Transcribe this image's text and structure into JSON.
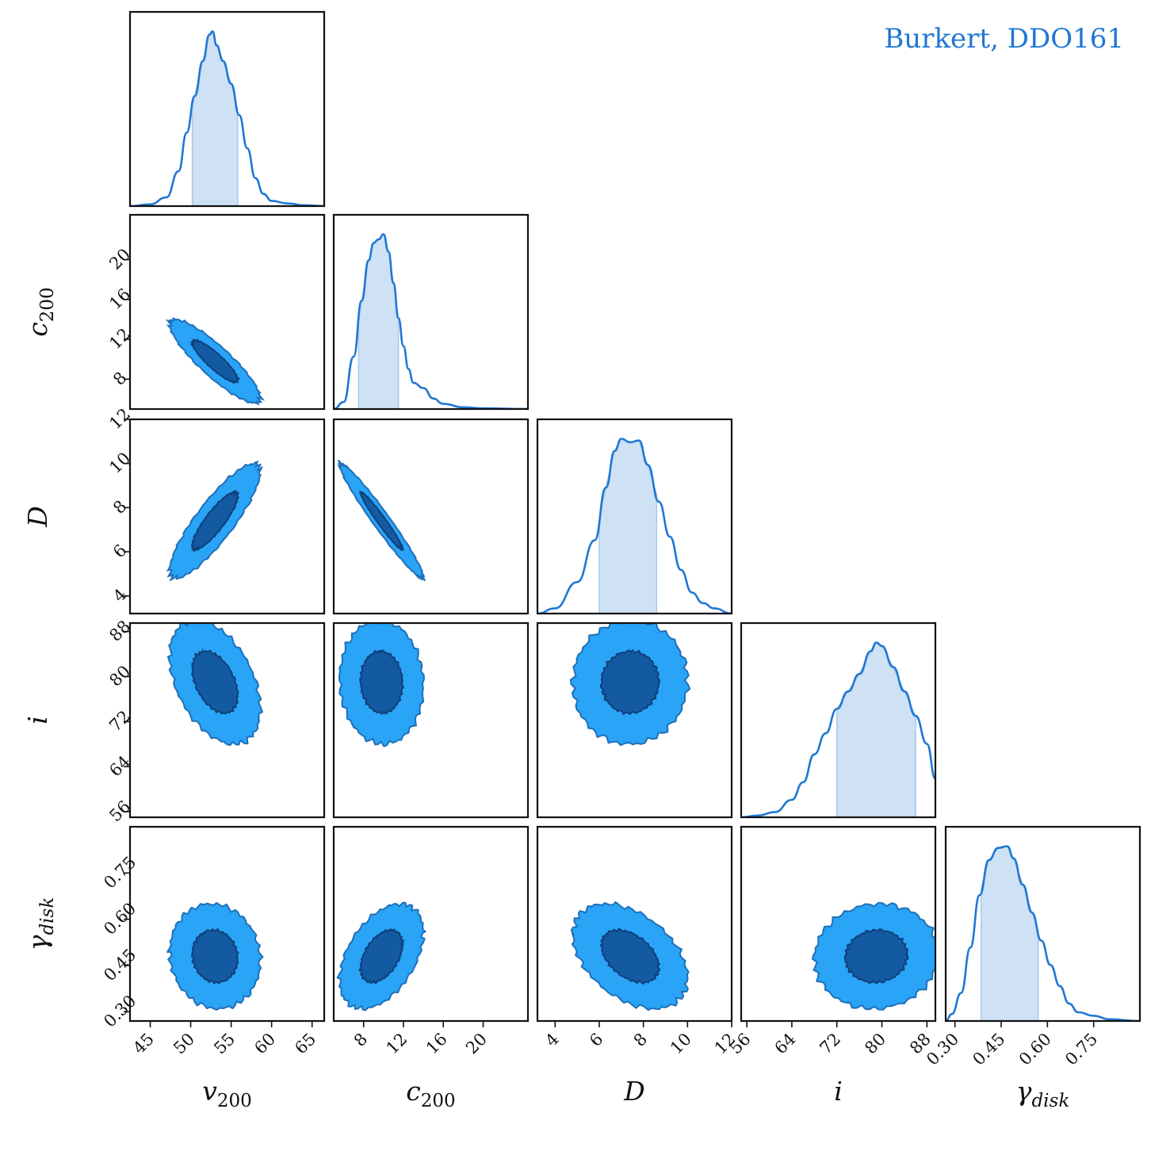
{
  "chart_data": {
    "type": "corner",
    "legend": {
      "label": "Burkert, DDO161",
      "color": "#1f77d4",
      "placement": "top-right"
    },
    "colors": {
      "line": "#1f77d4",
      "band": "#cfe1f4",
      "contour_outer": "#29a4f7",
      "contour_inner": "#135aa3",
      "contour_edge": "#1f6fb8"
    },
    "parameters": [
      {
        "key": "v200",
        "label": "v",
        "sub": "200",
        "sub_italic": false,
        "range": [
          42.5,
          66.5
        ],
        "ticks": [
          45,
          50,
          55,
          60,
          65
        ],
        "tick_labels": [
          "45",
          "50",
          "55",
          "60",
          "65"
        ],
        "mean": 53.0,
        "sigma": 2.8,
        "interval": [
          50.2,
          55.8
        ],
        "marginal": [
          [
            42.5,
            0.0
          ],
          [
            45,
            0.01
          ],
          [
            47,
            0.05
          ],
          [
            48.5,
            0.2
          ],
          [
            49.5,
            0.42
          ],
          [
            50.5,
            0.63
          ],
          [
            51.5,
            0.83
          ],
          [
            52.3,
            0.98
          ],
          [
            52.7,
            1.0
          ],
          [
            53.2,
            0.92
          ],
          [
            54,
            0.83
          ],
          [
            55,
            0.7
          ],
          [
            56,
            0.52
          ],
          [
            57,
            0.33
          ],
          [
            58,
            0.16
          ],
          [
            59,
            0.07
          ],
          [
            60,
            0.03
          ],
          [
            62,
            0.015
          ],
          [
            64,
            0.005
          ],
          [
            66.5,
            0.0
          ]
        ]
      },
      {
        "key": "c200",
        "label": "c",
        "sub": "200",
        "sub_italic": false,
        "range": [
          5.0,
          24.5
        ],
        "ticks": [
          8,
          12,
          16,
          20
        ],
        "tick_labels": [
          "8",
          "12",
          "16",
          "20"
        ],
        "mean": 9.8,
        "sigma": 2.1,
        "interval": [
          7.5,
          11.5
        ],
        "marginal": [
          [
            5,
            0.0
          ],
          [
            6,
            0.04
          ],
          [
            7,
            0.3
          ],
          [
            7.8,
            0.62
          ],
          [
            8.5,
            0.85
          ],
          [
            9,
            0.95
          ],
          [
            9.5,
            0.97
          ],
          [
            10,
            1.0
          ],
          [
            10.5,
            0.9
          ],
          [
            11,
            0.72
          ],
          [
            11.5,
            0.52
          ],
          [
            12,
            0.36
          ],
          [
            12.5,
            0.23
          ],
          [
            13,
            0.15
          ],
          [
            14,
            0.12
          ],
          [
            15,
            0.06
          ],
          [
            16,
            0.03
          ],
          [
            18,
            0.01
          ],
          [
            20,
            0.004
          ],
          [
            24.5,
            0.0
          ]
        ]
      },
      {
        "key": "D",
        "label": "D",
        "sub": "",
        "sub_italic": false,
        "range": [
          3.2,
          12.0
        ],
        "ticks": [
          4,
          6,
          8,
          10,
          12
        ],
        "tick_labels": [
          "4",
          "6",
          "8",
          "10",
          "12"
        ],
        "mean": 7.4,
        "sigma": 1.3,
        "interval": [
          6.0,
          8.6
        ],
        "marginal": [
          [
            3.2,
            0.0
          ],
          [
            4,
            0.03
          ],
          [
            5,
            0.18
          ],
          [
            5.8,
            0.42
          ],
          [
            6.3,
            0.72
          ],
          [
            6.7,
            0.93
          ],
          [
            7.0,
            1.0
          ],
          [
            7.4,
            0.98
          ],
          [
            7.8,
            0.99
          ],
          [
            8.2,
            0.85
          ],
          [
            8.7,
            0.64
          ],
          [
            9.2,
            0.44
          ],
          [
            9.7,
            0.25
          ],
          [
            10.2,
            0.12
          ],
          [
            10.7,
            0.06
          ],
          [
            11.2,
            0.03
          ],
          [
            12,
            0.0
          ]
        ]
      },
      {
        "key": "i",
        "label": "i",
        "sub": "",
        "sub_italic": false,
        "range": [
          55.0,
          89.5
        ],
        "ticks": [
          56,
          64,
          72,
          80,
          88
        ],
        "tick_labels": [
          "56",
          "64",
          "72",
          "80",
          "88"
        ],
        "mean": 79.0,
        "sigma": 5.5,
        "interval": [
          72.0,
          86.0
        ],
        "marginal": [
          [
            55,
            0.0
          ],
          [
            58,
            0.01
          ],
          [
            61,
            0.03
          ],
          [
            64,
            0.1
          ],
          [
            66,
            0.2
          ],
          [
            68,
            0.36
          ],
          [
            70,
            0.48
          ],
          [
            72,
            0.62
          ],
          [
            74,
            0.72
          ],
          [
            76,
            0.82
          ],
          [
            78,
            0.95
          ],
          [
            79,
            1.0
          ],
          [
            80,
            0.98
          ],
          [
            82,
            0.86
          ],
          [
            84,
            0.72
          ],
          [
            86,
            0.58
          ],
          [
            88,
            0.42
          ],
          [
            89.5,
            0.22
          ]
        ]
      },
      {
        "key": "gamma_disk",
        "label": "γ",
        "sub": "disk",
        "sub_italic": true,
        "range": [
          0.27,
          0.9
        ],
        "ticks": [
          0.3,
          0.45,
          0.6,
          0.75
        ],
        "tick_labels": [
          "0.30",
          "0.45",
          "0.60",
          "0.75"
        ],
        "mean": 0.48,
        "sigma": 0.085,
        "interval": [
          0.385,
          0.57
        ],
        "marginal": [
          [
            0.27,
            0.0
          ],
          [
            0.29,
            0.04
          ],
          [
            0.32,
            0.16
          ],
          [
            0.35,
            0.42
          ],
          [
            0.38,
            0.72
          ],
          [
            0.41,
            0.92
          ],
          [
            0.44,
            0.99
          ],
          [
            0.47,
            1.0
          ],
          [
            0.49,
            0.93
          ],
          [
            0.52,
            0.78
          ],
          [
            0.55,
            0.62
          ],
          [
            0.58,
            0.46
          ],
          [
            0.61,
            0.32
          ],
          [
            0.64,
            0.2
          ],
          [
            0.67,
            0.1
          ],
          [
            0.7,
            0.05
          ],
          [
            0.75,
            0.03
          ],
          [
            0.8,
            0.01
          ],
          [
            0.9,
            0.0
          ]
        ]
      }
    ],
    "correlations": {
      "1,0": -0.88,
      "2,0": 0.86,
      "2,1": -0.97,
      "3,0": -0.42,
      "3,1": -0.05,
      "3,2": 0.02,
      "4,0": -0.08,
      "4,1": 0.45,
      "4,2": -0.42,
      "4,3": 0.05
    },
    "contour_levels_sigma": [
      1,
      2
    ]
  }
}
